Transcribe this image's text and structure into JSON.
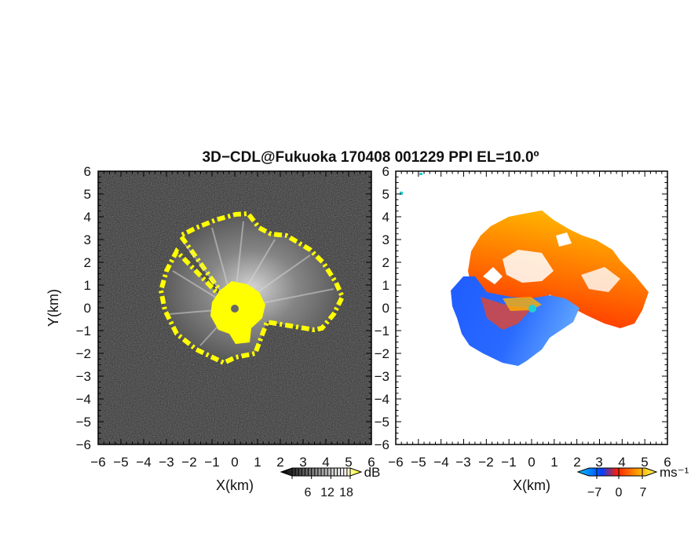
{
  "title": "3D−CDL@Fukuoka 170408 001229 PPI EL=10.0º",
  "chart_data": [
    {
      "type": "heatmap",
      "panel": "left",
      "quantity": "reflectivity",
      "xlabel": "X(km)",
      "ylabel": "Y(km)",
      "xlim": [
        -6,
        6
      ],
      "ylim": [
        -6,
        6
      ],
      "x_ticks": [
        "−6",
        "−5",
        "−4",
        "−3",
        "−2",
        "−1",
        "0",
        "1",
        "2",
        "3",
        "4",
        "5",
        "6"
      ],
      "y_ticks": [
        "6",
        "5",
        "4",
        "3",
        "2",
        "1",
        "0",
        "−1",
        "−2",
        "−3",
        "−4",
        "−5",
        "−6"
      ],
      "colorbar": {
        "label": "dB",
        "ticks": [
          "6",
          "12",
          "18"
        ],
        "colors": [
          "#000000",
          "#ffffff",
          "#ffff00"
        ]
      },
      "colors": {
        "background": "#2a2a2a",
        "echo": "#9a9a9a",
        "saturated": "#ffff00"
      }
    },
    {
      "type": "heatmap",
      "panel": "right",
      "quantity": "doppler velocity",
      "xlabel": "X(km)",
      "ylabel": "",
      "xlim": [
        -6,
        6
      ],
      "ylim": [
        -6,
        6
      ],
      "x_ticks": [
        "−6",
        "−5",
        "−4",
        "−3",
        "−2",
        "−1",
        "0",
        "1",
        "2",
        "3",
        "4",
        "5",
        "6"
      ],
      "y_ticks": [
        "6",
        "5",
        "4",
        "3",
        "2",
        "1",
        "0",
        "−1",
        "−2",
        "−3",
        "−4",
        "−5",
        "−6"
      ],
      "colorbar": {
        "label": "ms⁻¹",
        "ticks": [
          "−7",
          "0",
          "7"
        ],
        "colors": [
          "#00c8ff",
          "#0040ff",
          "#ff2000",
          "#ffb000",
          "#ffff60"
        ]
      },
      "colors": {
        "approaching": "#1f5cff",
        "receding": "#ff3a10",
        "high": "#ffb000"
      }
    }
  ]
}
